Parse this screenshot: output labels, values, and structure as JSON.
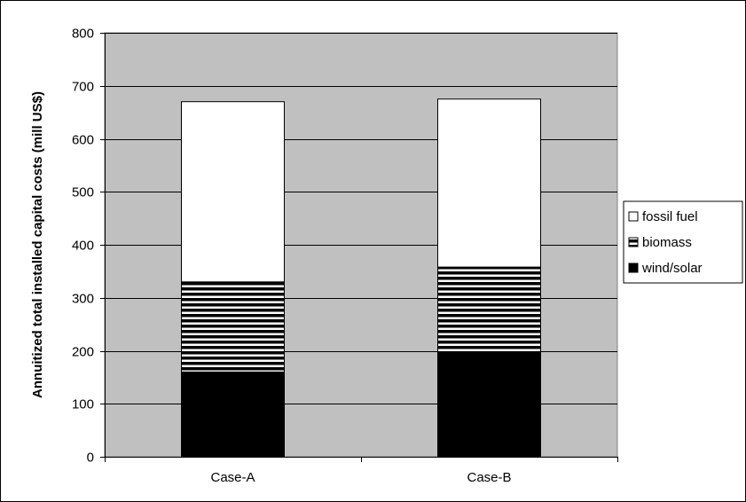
{
  "chart_data": {
    "type": "bar",
    "stacked": true,
    "categories": [
      "Case-A",
      "Case-B"
    ],
    "series": [
      {
        "name": "wind/solar",
        "values": [
          160,
          197
        ],
        "color": "#000000",
        "pattern": "solid"
      },
      {
        "name": "biomass",
        "values": [
          170,
          161
        ],
        "color": "#000000",
        "pattern": "horizontal-stripes"
      },
      {
        "name": "fossil fuel",
        "values": [
          340,
          317
        ],
        "color": "#ffffff",
        "pattern": "solid"
      }
    ],
    "ylabel": "Annuitized total installed capital costs (mill US$)",
    "xlabel": "",
    "ylim": [
      0,
      800
    ],
    "yticks": [
      0,
      100,
      200,
      300,
      400,
      500,
      600,
      700,
      800
    ],
    "grid": true,
    "plot_background": "#c0c0c0",
    "legend_position": "right",
    "legend_order": [
      "fossil fuel",
      "biomass",
      "wind/solar"
    ]
  }
}
